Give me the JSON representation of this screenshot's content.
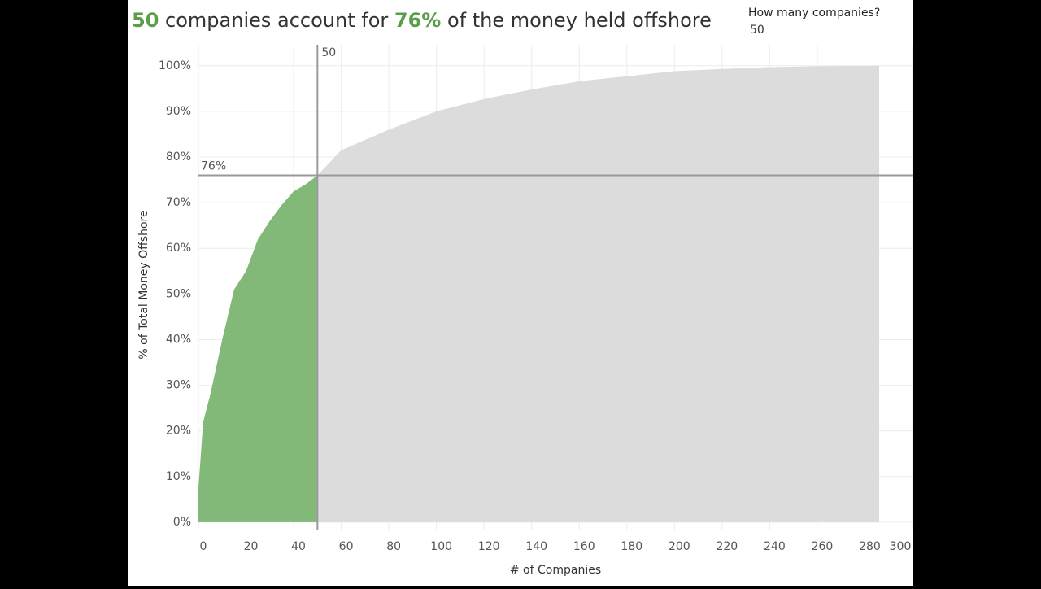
{
  "chart_data": {
    "type": "area",
    "title_parts": [
      {
        "text": "50",
        "highlight": true
      },
      {
        "text": " companies account for ",
        "highlight": false
      },
      {
        "text": "76%",
        "highlight": true
      },
      {
        "text": " of the money held offshore",
        "highlight": false
      }
    ],
    "title_highlight_color": "#5a9e4a",
    "parameter": {
      "label": "How many companies?",
      "value": "50"
    },
    "x_label": "# of Companies",
    "y_label": "% of Total Money Offshore",
    "x": [
      0,
      2,
      5,
      10,
      15,
      20,
      25,
      30,
      35,
      40,
      45,
      50,
      60,
      80,
      100,
      120,
      140,
      160,
      180,
      200,
      220,
      240,
      260,
      286
    ],
    "series": [
      {
        "color": "#dcdcdc",
        "values": [
          7.5,
          22,
          28,
          40,
          51,
          55,
          62,
          66,
          69.5,
          72.5,
          74,
          76,
          81.5,
          86,
          90,
          92.7,
          94.8,
          96.6,
          97.7,
          98.8,
          99.3,
          99.7,
          99.9,
          100
        ]
      }
    ],
    "highlight_until_x": 50,
    "highlight_color": "#82b878",
    "reference_lines": [
      {
        "axis": "x",
        "value": 50,
        "label": "50"
      },
      {
        "axis": "y",
        "value": 76,
        "label": "76%"
      }
    ],
    "xlim": [
      0,
      300
    ],
    "xticks": [
      0,
      20,
      40,
      60,
      80,
      100,
      120,
      140,
      160,
      180,
      200,
      220,
      240,
      260,
      280,
      300
    ],
    "ylim": [
      -1.8,
      104.6
    ],
    "yticks": [
      {
        "value": 0,
        "label": "0%"
      },
      {
        "value": 10,
        "label": "10%"
      },
      {
        "value": 20,
        "label": "20%"
      },
      {
        "value": 30,
        "label": "30%"
      },
      {
        "value": 40,
        "label": "40%"
      },
      {
        "value": 50,
        "label": "50%"
      },
      {
        "value": 60,
        "label": "60%"
      },
      {
        "value": 70,
        "label": "70%"
      },
      {
        "value": 80,
        "label": "80%"
      },
      {
        "value": 90,
        "label": "90%"
      },
      {
        "value": 100,
        "label": "100%"
      }
    ],
    "grid": true
  }
}
